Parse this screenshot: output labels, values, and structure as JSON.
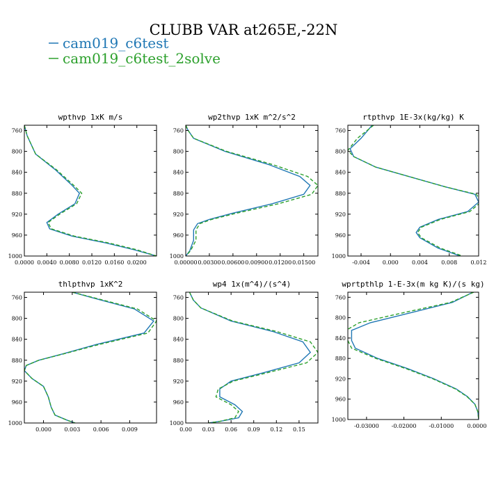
{
  "figure": {
    "title": "CLUBB VAR at265E,-22N",
    "legend": [
      {
        "label": "cam019_c6test",
        "color": "#1f77b4",
        "dash": "solid"
      },
      {
        "label": "cam019_c6test_2solve",
        "color": "#2ca02c",
        "dash": "dashed"
      }
    ]
  },
  "chart_data": [
    {
      "type": "line",
      "title": "wpthvp  1xK m/s",
      "xlim": [
        0.0,
        0.0235
      ],
      "ylim": [
        750,
        1000
      ],
      "y_inverted": true,
      "xticks": [
        0.0,
        0.004,
        0.008,
        0.012,
        0.016,
        0.02
      ],
      "xtick_labels": [
        "0.0000",
        "0.0040",
        "0.0080",
        "0.0120",
        "0.0160",
        "0.0200"
      ],
      "yticks": [
        760,
        800,
        840,
        880,
        920,
        960,
        1000
      ],
      "series": [
        {
          "name": "cam019_c6test",
          "x": [
            0.0,
            0.0005,
            0.002,
            0.0055,
            0.0085,
            0.0098,
            0.009,
            0.006,
            0.004,
            0.0045,
            0.0085,
            0.0145,
            0.0195,
            0.0235
          ],
          "y": [
            750,
            770,
            805,
            835,
            865,
            880,
            900,
            920,
            936,
            948,
            962,
            975,
            988,
            1000
          ]
        },
        {
          "name": "cam019_c6test_2solve",
          "x": [
            0.0,
            0.0005,
            0.002,
            0.0057,
            0.0088,
            0.0102,
            0.0093,
            0.0063,
            0.0042,
            0.0048,
            0.0089,
            0.015,
            0.02,
            0.0235
          ],
          "y": [
            750,
            770,
            805,
            835,
            865,
            880,
            900,
            920,
            936,
            948,
            962,
            975,
            988,
            1000
          ]
        }
      ]
    },
    {
      "type": "line",
      "title": "wp2thvp  1xK m^2/s^2",
      "xlim": [
        0.0,
        0.0168
      ],
      "ylim": [
        750,
        1000
      ],
      "y_inverted": true,
      "xticks": [
        0.0,
        0.003,
        0.006,
        0.009,
        0.012,
        0.015
      ],
      "xtick_labels": [
        "0.00000",
        "0.00300",
        "0.00600",
        "0.00900",
        "0.01200",
        "0.01500"
      ],
      "yticks": [
        760,
        800,
        840,
        880,
        920,
        960,
        1000
      ],
      "series": [
        {
          "name": "cam019_c6test",
          "x": [
            0.0,
            0.0003,
            0.001,
            0.005,
            0.0105,
            0.0145,
            0.0158,
            0.015,
            0.011,
            0.006,
            0.003,
            0.0015,
            0.001,
            0.001,
            0.0005,
            0.0
          ],
          "y": [
            750,
            760,
            775,
            800,
            825,
            848,
            865,
            882,
            900,
            918,
            930,
            938,
            950,
            970,
            990,
            1000
          ]
        },
        {
          "name": "cam019_c6test_2solve",
          "x": [
            0.0,
            0.0003,
            0.001,
            0.0052,
            0.011,
            0.0155,
            0.0168,
            0.016,
            0.0118,
            0.0065,
            0.0033,
            0.0018,
            0.0013,
            0.0013,
            0.0006,
            0.0
          ],
          "y": [
            750,
            760,
            775,
            800,
            825,
            848,
            865,
            882,
            900,
            918,
            930,
            938,
            950,
            970,
            990,
            1000
          ]
        }
      ]
    },
    {
      "type": "line",
      "title": "rtpthvp  1E-3x(kg/kg) K",
      "xlim": [
        -0.0058,
        0.012
      ],
      "ylim": [
        750,
        1000
      ],
      "y_inverted": true,
      "xticks": [
        -0.004,
        0.0,
        0.004,
        0.008,
        0.012
      ],
      "xtick_labels": [
        "-0.004",
        "0.000",
        "0.004",
        "0.008",
        "0.012"
      ],
      "yticks": [
        760,
        800,
        840,
        880,
        920,
        960,
        1000
      ],
      "series": [
        {
          "name": "cam019_c6test",
          "x": [
            -0.0025,
            -0.004,
            -0.0055,
            -0.005,
            -0.002,
            0.003,
            0.0075,
            0.0115,
            0.012,
            0.0105,
            0.0065,
            0.004,
            0.0035,
            0.004,
            0.0065,
            0.0095
          ],
          "y": [
            750,
            775,
            795,
            810,
            830,
            850,
            868,
            882,
            897,
            915,
            930,
            945,
            955,
            965,
            985,
            1000
          ]
        },
        {
          "name": "cam019_c6test_2solve",
          "x": [
            -0.0023,
            -0.0045,
            -0.0058,
            -0.005,
            -0.002,
            0.003,
            0.0075,
            0.0117,
            0.0123,
            0.0108,
            0.0068,
            0.0042,
            0.0037,
            0.0042,
            0.0068,
            0.0098
          ],
          "y": [
            750,
            775,
            798,
            810,
            830,
            850,
            868,
            882,
            897,
            915,
            930,
            945,
            955,
            965,
            985,
            1000
          ]
        }
      ]
    },
    {
      "type": "line",
      "title": "thlpthvp  1xK^2",
      "xlim": [
        -0.002,
        0.0118
      ],
      "ylim": [
        750,
        1000
      ],
      "y_inverted": true,
      "xticks": [
        0.0,
        0.003,
        0.006,
        0.009
      ],
      "xtick_labels": [
        "0.000",
        "0.003",
        "0.006",
        "0.009"
      ],
      "yticks": [
        760,
        800,
        840,
        880,
        920,
        960,
        1000
      ],
      "series": [
        {
          "name": "cam019_c6test",
          "x": [
            0.003,
            0.006,
            0.0095,
            0.0115,
            0.0105,
            0.0055,
            0.002,
            -0.0005,
            -0.0018,
            -0.002,
            -0.0012,
            0.0,
            0.0005,
            0.0008,
            0.0012,
            0.0025,
            0.0033
          ],
          "y": [
            750,
            765,
            782,
            805,
            828,
            850,
            868,
            880,
            890,
            900,
            915,
            930,
            950,
            970,
            985,
            995,
            1000
          ]
        },
        {
          "name": "cam019_c6test_2solve",
          "x": [
            0.003,
            0.0062,
            0.0098,
            0.0118,
            0.0109,
            0.0058,
            0.0021,
            -0.0005,
            -0.0018,
            -0.002,
            -0.0012,
            0.0,
            0.0005,
            0.0008,
            0.0012,
            0.0025,
            0.0033
          ],
          "y": [
            750,
            765,
            782,
            805,
            828,
            850,
            868,
            880,
            890,
            900,
            915,
            930,
            950,
            970,
            985,
            995,
            1000
          ]
        }
      ]
    },
    {
      "type": "line",
      "title": "wp4  1x(m^4)/(s^4)",
      "xlim": [
        0.0,
        0.175
      ],
      "ylim": [
        750,
        1000
      ],
      "y_inverted": true,
      "xticks": [
        0.0,
        0.03,
        0.06,
        0.09,
        0.12,
        0.15
      ],
      "xtick_labels": [
        "0.00",
        "0.03",
        "0.06",
        "0.09",
        "0.12",
        "0.15"
      ],
      "yticks": [
        760,
        800,
        840,
        880,
        920,
        960,
        1000
      ],
      "series": [
        {
          "name": "cam019_c6test",
          "x": [
            0.005,
            0.01,
            0.02,
            0.06,
            0.115,
            0.155,
            0.165,
            0.15,
            0.1,
            0.06,
            0.045,
            0.045,
            0.065,
            0.075,
            0.07,
            0.045,
            0.03
          ],
          "y": [
            750,
            765,
            780,
            805,
            825,
            845,
            865,
            885,
            905,
            920,
            935,
            950,
            965,
            978,
            990,
            997,
            1000
          ]
        },
        {
          "name": "cam019_c6test_2solve",
          "x": [
            0.005,
            0.01,
            0.02,
            0.062,
            0.12,
            0.165,
            0.175,
            0.16,
            0.105,
            0.063,
            0.043,
            0.04,
            0.06,
            0.07,
            0.065,
            0.045,
            0.03
          ],
          "y": [
            750,
            765,
            780,
            805,
            825,
            845,
            865,
            885,
            905,
            920,
            935,
            950,
            965,
            978,
            990,
            997,
            1000
          ]
        }
      ]
    },
    {
      "type": "line",
      "title": "wprtpthlp  1-E-3x(m kg K)/(s kg)",
      "xlim": [
        -0.035,
        0.0
      ],
      "ylim": [
        750,
        1000
      ],
      "y_inverted": true,
      "xticks": [
        -0.03,
        -0.02,
        -0.01,
        0.0
      ],
      "xtick_labels": [
        "-0.03000",
        "-0.02000",
        "-0.01000",
        "0.00000"
      ],
      "yticks": [
        760,
        800,
        840,
        880,
        920,
        960,
        1000
      ],
      "series": [
        {
          "name": "cam019_c6test",
          "x": [
            -0.0015,
            -0.007,
            -0.018,
            -0.029,
            -0.034,
            -0.034,
            -0.033,
            -0.027,
            -0.019,
            -0.012,
            -0.006,
            -0.003,
            -0.001,
            -0.0002,
            0.0
          ],
          "y": [
            750,
            770,
            790,
            810,
            825,
            845,
            860,
            880,
            900,
            920,
            940,
            955,
            970,
            985,
            1000
          ]
        },
        {
          "name": "cam019_c6test_2solve",
          "x": [
            -0.0013,
            -0.0075,
            -0.02,
            -0.032,
            -0.0355,
            -0.035,
            -0.034,
            -0.0275,
            -0.0195,
            -0.0123,
            -0.0062,
            -0.0031,
            -0.001,
            -0.0002,
            0.0
          ],
          "y": [
            750,
            770,
            790,
            810,
            825,
            845,
            860,
            880,
            900,
            920,
            940,
            955,
            970,
            985,
            1000
          ]
        }
      ]
    }
  ]
}
